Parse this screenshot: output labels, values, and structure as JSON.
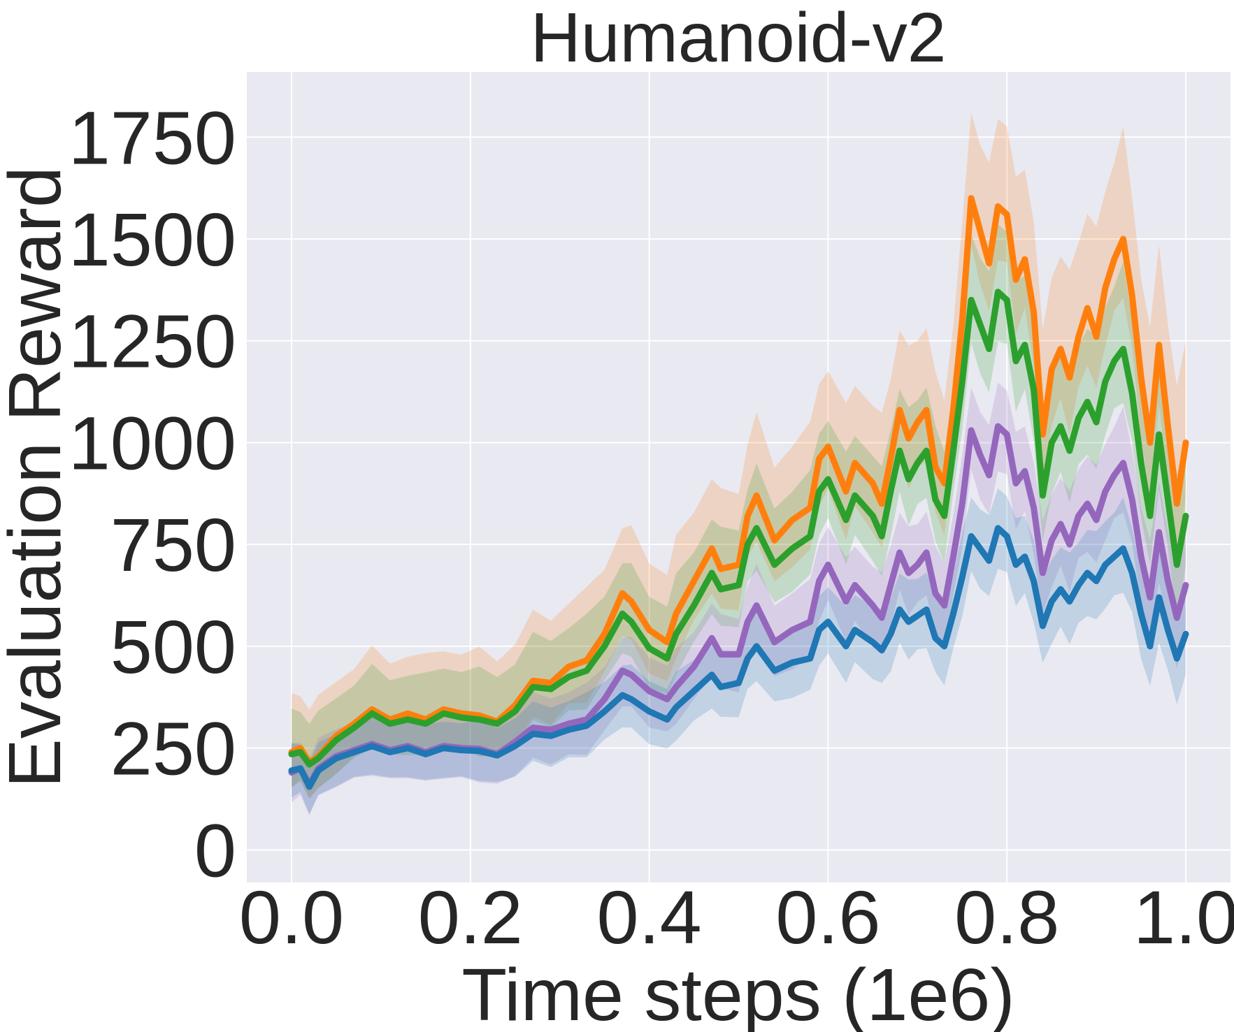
{
  "chart_data": {
    "type": "line",
    "title": "Humanoid-v2",
    "xlabel": "Time steps (1e6)",
    "ylabel": "Evaluation Reward",
    "xlim": [
      -0.05,
      1.05
    ],
    "ylim": [
      -80,
      1910
    ],
    "xticks": [
      0.0,
      0.2,
      0.4,
      0.6,
      0.8,
      1.0
    ],
    "xtick_labels": [
      "0.0",
      "0.2",
      "0.4",
      "0.6",
      "0.8",
      "1.0"
    ],
    "yticks": [
      0,
      250,
      500,
      750,
      1000,
      1250,
      1500,
      1750
    ],
    "ytick_labels": [
      "0",
      "250",
      "500",
      "750",
      "1000",
      "1250",
      "1500",
      "1750"
    ],
    "grid": true,
    "background": "#e9e9f1",
    "series": [
      {
        "color": "#ff7f0e",
        "points": [
          [
            0.0,
            240
          ],
          [
            0.01,
            250
          ],
          [
            0.02,
            215
          ],
          [
            0.03,
            230
          ],
          [
            0.05,
            280
          ],
          [
            0.07,
            310
          ],
          [
            0.09,
            345
          ],
          [
            0.11,
            320
          ],
          [
            0.13,
            335
          ],
          [
            0.15,
            320
          ],
          [
            0.17,
            345
          ],
          [
            0.19,
            335
          ],
          [
            0.21,
            330
          ],
          [
            0.23,
            315
          ],
          [
            0.25,
            355
          ],
          [
            0.27,
            415
          ],
          [
            0.29,
            410
          ],
          [
            0.31,
            450
          ],
          [
            0.33,
            465
          ],
          [
            0.35,
            530
          ],
          [
            0.37,
            630
          ],
          [
            0.38,
            610
          ],
          [
            0.4,
            540
          ],
          [
            0.42,
            510
          ],
          [
            0.43,
            580
          ],
          [
            0.45,
            660
          ],
          [
            0.47,
            740
          ],
          [
            0.48,
            690
          ],
          [
            0.5,
            700
          ],
          [
            0.51,
            820
          ],
          [
            0.52,
            870
          ],
          [
            0.54,
            760
          ],
          [
            0.56,
            810
          ],
          [
            0.58,
            840
          ],
          [
            0.59,
            960
          ],
          [
            0.6,
            990
          ],
          [
            0.62,
            880
          ],
          [
            0.63,
            950
          ],
          [
            0.65,
            900
          ],
          [
            0.66,
            850
          ],
          [
            0.67,
            960
          ],
          [
            0.68,
            1080
          ],
          [
            0.69,
            1010
          ],
          [
            0.7,
            1050
          ],
          [
            0.71,
            1080
          ],
          [
            0.72,
            940
          ],
          [
            0.73,
            900
          ],
          [
            0.74,
            1080
          ],
          [
            0.75,
            1300
          ],
          [
            0.76,
            1600
          ],
          [
            0.77,
            1520
          ],
          [
            0.78,
            1440
          ],
          [
            0.79,
            1580
          ],
          [
            0.8,
            1560
          ],
          [
            0.81,
            1400
          ],
          [
            0.82,
            1450
          ],
          [
            0.83,
            1320
          ],
          [
            0.84,
            1020
          ],
          [
            0.85,
            1180
          ],
          [
            0.86,
            1230
          ],
          [
            0.87,
            1160
          ],
          [
            0.88,
            1260
          ],
          [
            0.89,
            1330
          ],
          [
            0.9,
            1260
          ],
          [
            0.91,
            1380
          ],
          [
            0.92,
            1450
          ],
          [
            0.93,
            1500
          ],
          [
            0.94,
            1360
          ],
          [
            0.95,
            1160
          ],
          [
            0.96,
            1000
          ],
          [
            0.97,
            1240
          ],
          [
            0.98,
            1040
          ],
          [
            0.99,
            850
          ],
          [
            1.0,
            1000
          ]
        ],
        "band": [
          120,
          220
        ]
      },
      {
        "color": "#2ca02c",
        "points": [
          [
            0.0,
            235
          ],
          [
            0.01,
            240
          ],
          [
            0.02,
            210
          ],
          [
            0.03,
            225
          ],
          [
            0.05,
            270
          ],
          [
            0.07,
            300
          ],
          [
            0.09,
            335
          ],
          [
            0.11,
            310
          ],
          [
            0.13,
            320
          ],
          [
            0.15,
            310
          ],
          [
            0.17,
            335
          ],
          [
            0.19,
            325
          ],
          [
            0.21,
            320
          ],
          [
            0.23,
            310
          ],
          [
            0.25,
            340
          ],
          [
            0.27,
            400
          ],
          [
            0.29,
            395
          ],
          [
            0.31,
            425
          ],
          [
            0.33,
            440
          ],
          [
            0.35,
            500
          ],
          [
            0.37,
            580
          ],
          [
            0.38,
            560
          ],
          [
            0.4,
            495
          ],
          [
            0.42,
            470
          ],
          [
            0.43,
            530
          ],
          [
            0.45,
            600
          ],
          [
            0.47,
            680
          ],
          [
            0.48,
            640
          ],
          [
            0.5,
            650
          ],
          [
            0.51,
            750
          ],
          [
            0.52,
            790
          ],
          [
            0.54,
            700
          ],
          [
            0.56,
            740
          ],
          [
            0.58,
            770
          ],
          [
            0.59,
            880
          ],
          [
            0.6,
            910
          ],
          [
            0.62,
            810
          ],
          [
            0.63,
            870
          ],
          [
            0.65,
            820
          ],
          [
            0.66,
            770
          ],
          [
            0.67,
            880
          ],
          [
            0.68,
            980
          ],
          [
            0.69,
            910
          ],
          [
            0.7,
            950
          ],
          [
            0.71,
            980
          ],
          [
            0.72,
            860
          ],
          [
            0.73,
            820
          ],
          [
            0.74,
            980
          ],
          [
            0.75,
            1150
          ],
          [
            0.76,
            1350
          ],
          [
            0.77,
            1290
          ],
          [
            0.78,
            1230
          ],
          [
            0.79,
            1370
          ],
          [
            0.8,
            1350
          ],
          [
            0.81,
            1200
          ],
          [
            0.82,
            1240
          ],
          [
            0.83,
            1130
          ],
          [
            0.84,
            870
          ],
          [
            0.85,
            1000
          ],
          [
            0.86,
            1040
          ],
          [
            0.87,
            980
          ],
          [
            0.88,
            1060
          ],
          [
            0.89,
            1100
          ],
          [
            0.9,
            1050
          ],
          [
            0.91,
            1150
          ],
          [
            0.92,
            1200
          ],
          [
            0.93,
            1230
          ],
          [
            0.94,
            1120
          ],
          [
            0.95,
            950
          ],
          [
            0.96,
            820
          ],
          [
            0.97,
            1020
          ],
          [
            0.98,
            860
          ],
          [
            0.99,
            700
          ],
          [
            1.0,
            820
          ]
        ],
        "band": [
          110,
          170
        ]
      },
      {
        "color": "#9467bd",
        "points": [
          [
            0.0,
            190
          ],
          [
            0.01,
            200
          ],
          [
            0.02,
            160
          ],
          [
            0.03,
            200
          ],
          [
            0.05,
            230
          ],
          [
            0.07,
            245
          ],
          [
            0.09,
            260
          ],
          [
            0.11,
            245
          ],
          [
            0.13,
            255
          ],
          [
            0.15,
            240
          ],
          [
            0.17,
            255
          ],
          [
            0.19,
            250
          ],
          [
            0.21,
            248
          ],
          [
            0.23,
            235
          ],
          [
            0.25,
            265
          ],
          [
            0.27,
            300
          ],
          [
            0.29,
            295
          ],
          [
            0.31,
            310
          ],
          [
            0.33,
            320
          ],
          [
            0.35,
            370
          ],
          [
            0.37,
            440
          ],
          [
            0.38,
            430
          ],
          [
            0.4,
            390
          ],
          [
            0.42,
            370
          ],
          [
            0.43,
            400
          ],
          [
            0.45,
            450
          ],
          [
            0.47,
            520
          ],
          [
            0.48,
            480
          ],
          [
            0.5,
            480
          ],
          [
            0.51,
            560
          ],
          [
            0.52,
            600
          ],
          [
            0.54,
            510
          ],
          [
            0.56,
            540
          ],
          [
            0.58,
            560
          ],
          [
            0.59,
            660
          ],
          [
            0.6,
            700
          ],
          [
            0.62,
            610
          ],
          [
            0.63,
            650
          ],
          [
            0.65,
            600
          ],
          [
            0.66,
            570
          ],
          [
            0.67,
            650
          ],
          [
            0.68,
            730
          ],
          [
            0.69,
            680
          ],
          [
            0.7,
            700
          ],
          [
            0.71,
            730
          ],
          [
            0.72,
            630
          ],
          [
            0.73,
            600
          ],
          [
            0.74,
            720
          ],
          [
            0.75,
            850
          ],
          [
            0.76,
            1030
          ],
          [
            0.77,
            970
          ],
          [
            0.78,
            920
          ],
          [
            0.79,
            1040
          ],
          [
            0.8,
            1020
          ],
          [
            0.81,
            900
          ],
          [
            0.82,
            930
          ],
          [
            0.83,
            840
          ],
          [
            0.84,
            680
          ],
          [
            0.85,
            760
          ],
          [
            0.86,
            800
          ],
          [
            0.87,
            750
          ],
          [
            0.88,
            820
          ],
          [
            0.89,
            850
          ],
          [
            0.9,
            810
          ],
          [
            0.91,
            880
          ],
          [
            0.92,
            920
          ],
          [
            0.93,
            950
          ],
          [
            0.94,
            860
          ],
          [
            0.95,
            720
          ],
          [
            0.96,
            620
          ],
          [
            0.97,
            780
          ],
          [
            0.98,
            660
          ],
          [
            0.99,
            570
          ],
          [
            1.0,
            650
          ]
        ],
        "band": [
          100,
          110
        ]
      },
      {
        "color": "#1f77b4",
        "points": [
          [
            0.0,
            195
          ],
          [
            0.01,
            200
          ],
          [
            0.02,
            155
          ],
          [
            0.03,
            195
          ],
          [
            0.05,
            225
          ],
          [
            0.07,
            240
          ],
          [
            0.09,
            255
          ],
          [
            0.11,
            240
          ],
          [
            0.13,
            250
          ],
          [
            0.15,
            235
          ],
          [
            0.17,
            250
          ],
          [
            0.19,
            245
          ],
          [
            0.21,
            243
          ],
          [
            0.23,
            232
          ],
          [
            0.25,
            255
          ],
          [
            0.27,
            285
          ],
          [
            0.29,
            280
          ],
          [
            0.31,
            295
          ],
          [
            0.33,
            305
          ],
          [
            0.35,
            340
          ],
          [
            0.37,
            380
          ],
          [
            0.38,
            370
          ],
          [
            0.4,
            340
          ],
          [
            0.42,
            320
          ],
          [
            0.43,
            350
          ],
          [
            0.45,
            390
          ],
          [
            0.47,
            430
          ],
          [
            0.48,
            400
          ],
          [
            0.5,
            410
          ],
          [
            0.51,
            470
          ],
          [
            0.52,
            500
          ],
          [
            0.54,
            440
          ],
          [
            0.56,
            460
          ],
          [
            0.58,
            470
          ],
          [
            0.59,
            540
          ],
          [
            0.6,
            560
          ],
          [
            0.62,
            500
          ],
          [
            0.63,
            540
          ],
          [
            0.65,
            510
          ],
          [
            0.66,
            490
          ],
          [
            0.67,
            530
          ],
          [
            0.68,
            590
          ],
          [
            0.69,
            560
          ],
          [
            0.7,
            575
          ],
          [
            0.71,
            590
          ],
          [
            0.72,
            520
          ],
          [
            0.73,
            500
          ],
          [
            0.74,
            580
          ],
          [
            0.75,
            670
          ],
          [
            0.76,
            770
          ],
          [
            0.77,
            740
          ],
          [
            0.78,
            710
          ],
          [
            0.79,
            790
          ],
          [
            0.8,
            770
          ],
          [
            0.81,
            700
          ],
          [
            0.82,
            720
          ],
          [
            0.83,
            660
          ],
          [
            0.84,
            550
          ],
          [
            0.85,
            610
          ],
          [
            0.86,
            640
          ],
          [
            0.87,
            610
          ],
          [
            0.88,
            650
          ],
          [
            0.89,
            680
          ],
          [
            0.9,
            660
          ],
          [
            0.91,
            700
          ],
          [
            0.92,
            720
          ],
          [
            0.93,
            740
          ],
          [
            0.94,
            680
          ],
          [
            0.95,
            580
          ],
          [
            0.96,
            500
          ],
          [
            0.97,
            620
          ],
          [
            0.98,
            540
          ],
          [
            0.99,
            470
          ],
          [
            1.0,
            530
          ]
        ],
        "band": [
          90,
          100
        ]
      }
    ]
  }
}
